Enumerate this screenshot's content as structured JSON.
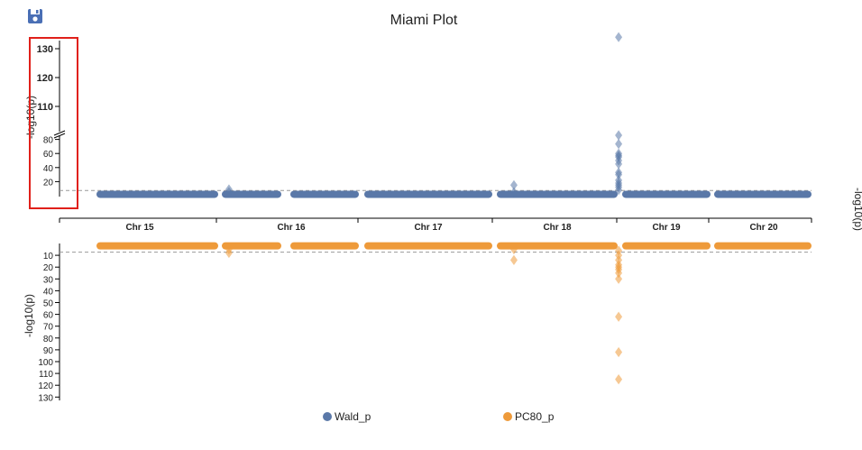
{
  "toolbar": {
    "save_icon": "save-icon"
  },
  "colors": {
    "top": "#5a78a8",
    "bottom": "#ee9a3a",
    "selection": "#e0201a",
    "threshold": "#999999"
  },
  "chart_data": {
    "type": "scatter",
    "title": "Miami Plot",
    "xaxis": {
      "chromosomes": [
        "Chr 15",
        "Chr 16",
        "Chr 17",
        "Chr 18",
        "Chr 19",
        "Chr 20"
      ]
    },
    "top": {
      "series_name": "Wald_p",
      "ylabel": "-log10(p)",
      "ylabel_right": "-log10(p)",
      "ticks_lower": [
        20,
        40,
        60,
        80
      ],
      "ticks_upper": [
        110,
        120,
        130
      ],
      "threshold": 7.3,
      "baseline": 2,
      "peaks": [
        {
          "chr": "Chr 16",
          "pos": 0.12,
          "values": [
            5,
            9
          ]
        },
        {
          "chr": "Chr 19",
          "pos": 0.08,
          "values": [
            5,
            15
          ]
        },
        {
          "chr": "Chr 19",
          "pos": 0.57,
          "values": [
            8,
            12,
            15,
            18,
            22,
            30,
            33,
            45,
            50,
            55,
            60,
            93,
            97,
            100,
            134
          ]
        }
      ]
    },
    "bottom": {
      "series_name": "PC80_p",
      "ylabel": "-log10(p)",
      "ticks": [
        10,
        20,
        30,
        40,
        50,
        60,
        70,
        80,
        90,
        100,
        110,
        120,
        130
      ],
      "threshold": 7.3,
      "baseline": 2,
      "peaks": [
        {
          "chr": "Chr 16",
          "pos": 0.12,
          "values": [
            5,
            8
          ]
        },
        {
          "chr": "Chr 19",
          "pos": 0.08,
          "values": [
            5,
            14
          ]
        },
        {
          "chr": "Chr 19",
          "pos": 0.57,
          "values": [
            6,
            10,
            14,
            18,
            20,
            22,
            25,
            30,
            62,
            92,
            115
          ]
        }
      ]
    }
  }
}
